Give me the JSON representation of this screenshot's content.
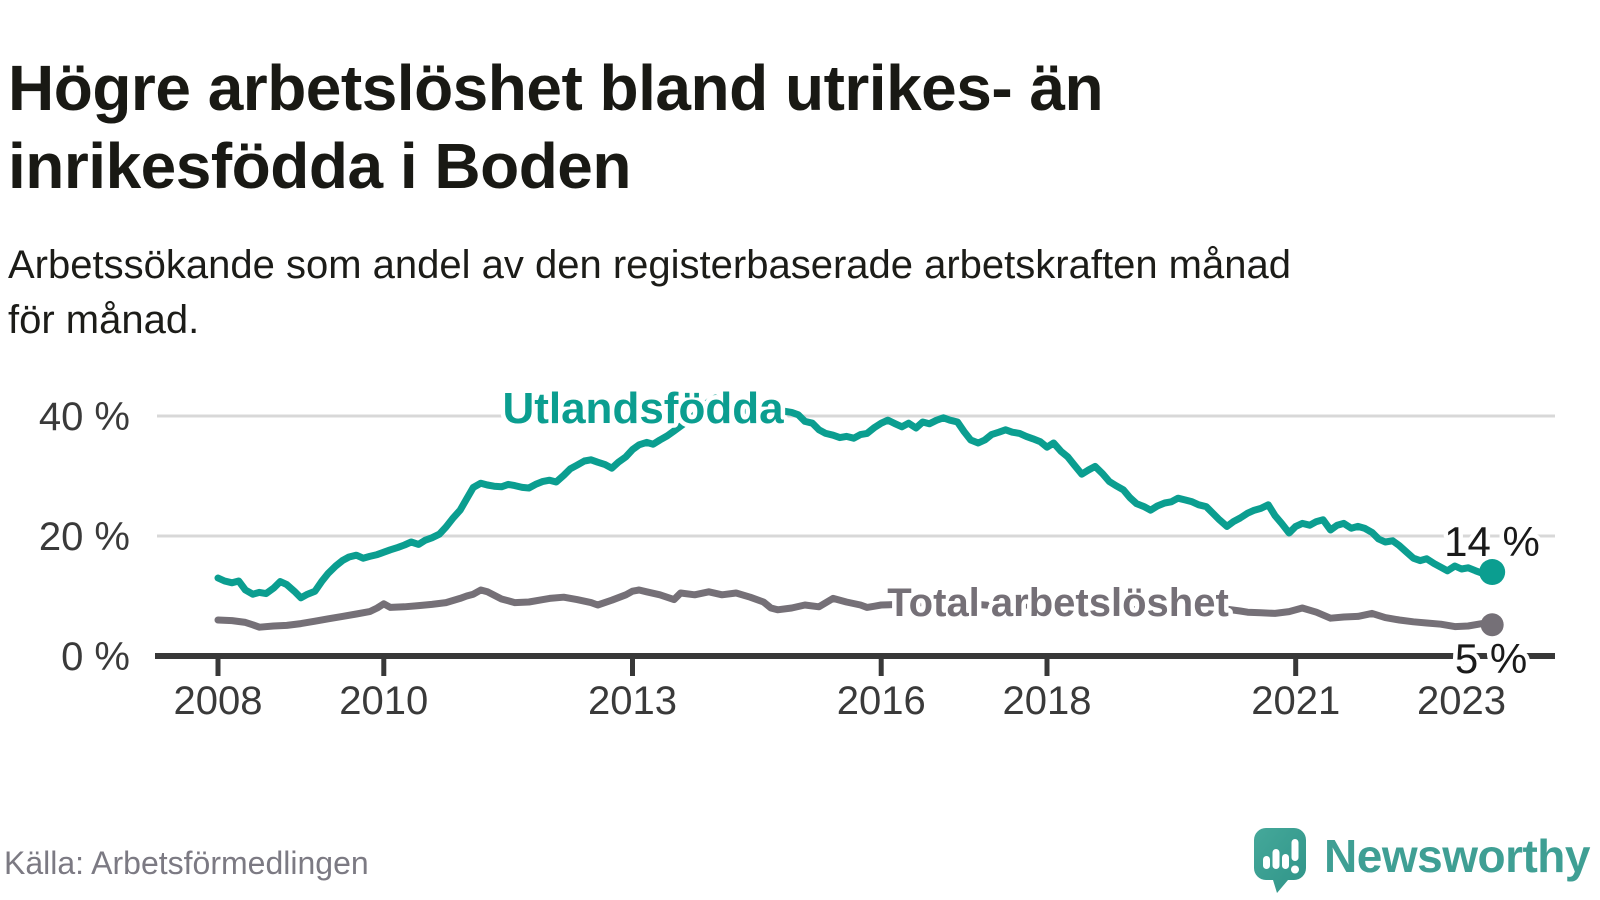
{
  "header": {
    "title_lines": [
      "Högre arbetslöshet bland utrikes- än",
      "inrikesfödda i Boden"
    ],
    "subtitle_lines": [
      "Arbetssökande som andel av den registerbaserade arbetskraften månad",
      "för månad."
    ]
  },
  "chart_data": {
    "type": "line",
    "unit": "%",
    "grid": "horizontal",
    "xlim": [
      2007.3,
      2024.1
    ],
    "ylim": [
      0,
      47
    ],
    "x_ticks": [
      {
        "year": 2008,
        "label": "2008"
      },
      {
        "year": 2010,
        "label": "2010"
      },
      {
        "year": 2013,
        "label": "2013"
      },
      {
        "year": 2016,
        "label": "2016"
      },
      {
        "year": 2018,
        "label": "2018"
      },
      {
        "year": 2021,
        "label": "2021"
      },
      {
        "year": 2023,
        "label": "2023"
      }
    ],
    "y_ticks": [
      {
        "value": 0,
        "label": "0 %"
      },
      {
        "value": 20,
        "label": "20 %"
      },
      {
        "value": 40,
        "label": "40 %"
      }
    ],
    "series": [
      {
        "name": "Utlandsfödda",
        "color": "#0b9e90",
        "end_label": "14 %",
        "last_value": 14,
        "points": [
          [
            2008.0,
            13.0
          ],
          [
            2008.08,
            12.5
          ],
          [
            2008.17,
            12.2
          ],
          [
            2008.25,
            12.5
          ],
          [
            2008.33,
            11.0
          ],
          [
            2008.42,
            10.3
          ],
          [
            2008.5,
            10.6
          ],
          [
            2008.58,
            10.4
          ],
          [
            2008.67,
            11.3
          ],
          [
            2008.75,
            12.4
          ],
          [
            2008.83,
            11.9
          ],
          [
            2008.92,
            10.8
          ],
          [
            2009.0,
            9.7
          ],
          [
            2009.08,
            10.3
          ],
          [
            2009.17,
            10.8
          ],
          [
            2009.25,
            12.4
          ],
          [
            2009.33,
            13.8
          ],
          [
            2009.42,
            15.0
          ],
          [
            2009.5,
            15.9
          ],
          [
            2009.58,
            16.5
          ],
          [
            2009.67,
            16.8
          ],
          [
            2009.75,
            16.3
          ],
          [
            2009.83,
            16.6
          ],
          [
            2009.92,
            16.9
          ],
          [
            2010.0,
            17.3
          ],
          [
            2010.08,
            17.7
          ],
          [
            2010.17,
            18.1
          ],
          [
            2010.25,
            18.5
          ],
          [
            2010.33,
            19.0
          ],
          [
            2010.42,
            18.6
          ],
          [
            2010.5,
            19.3
          ],
          [
            2010.58,
            19.7
          ],
          [
            2010.67,
            20.3
          ],
          [
            2010.75,
            21.5
          ],
          [
            2010.83,
            22.9
          ],
          [
            2010.92,
            24.3
          ],
          [
            2011.0,
            26.2
          ],
          [
            2011.08,
            28.1
          ],
          [
            2011.17,
            28.8
          ],
          [
            2011.25,
            28.5
          ],
          [
            2011.33,
            28.3
          ],
          [
            2011.42,
            28.2
          ],
          [
            2011.5,
            28.6
          ],
          [
            2011.58,
            28.4
          ],
          [
            2011.67,
            28.1
          ],
          [
            2011.75,
            28.0
          ],
          [
            2011.83,
            28.6
          ],
          [
            2011.92,
            29.1
          ],
          [
            2012.0,
            29.3
          ],
          [
            2012.08,
            29.0
          ],
          [
            2012.17,
            30.1
          ],
          [
            2012.25,
            31.2
          ],
          [
            2012.33,
            31.8
          ],
          [
            2012.42,
            32.5
          ],
          [
            2012.5,
            32.7
          ],
          [
            2012.58,
            32.3
          ],
          [
            2012.67,
            31.9
          ],
          [
            2012.75,
            31.3
          ],
          [
            2012.83,
            32.3
          ],
          [
            2012.92,
            33.2
          ],
          [
            2013.0,
            34.4
          ],
          [
            2013.08,
            35.2
          ],
          [
            2013.17,
            35.6
          ],
          [
            2013.25,
            35.3
          ],
          [
            2013.33,
            36.0
          ],
          [
            2013.42,
            36.7
          ],
          [
            2013.5,
            37.5
          ],
          [
            2013.58,
            38.3
          ],
          [
            2013.67,
            39.2
          ],
          [
            2013.75,
            40.2
          ],
          [
            2013.83,
            41.3
          ],
          [
            2013.92,
            42.4
          ],
          [
            2014.0,
            43.0
          ],
          [
            2014.08,
            42.1
          ],
          [
            2014.17,
            41.3
          ],
          [
            2014.25,
            41.7
          ],
          [
            2014.33,
            41.1
          ],
          [
            2014.42,
            40.6
          ],
          [
            2014.5,
            41.0
          ],
          [
            2014.58,
            40.5
          ],
          [
            2014.67,
            40.8
          ],
          [
            2014.75,
            40.3
          ],
          [
            2014.83,
            40.8
          ],
          [
            2014.92,
            40.6
          ],
          [
            2015.0,
            40.2
          ],
          [
            2015.08,
            39.1
          ],
          [
            2015.17,
            38.8
          ],
          [
            2015.25,
            37.7
          ],
          [
            2015.33,
            37.1
          ],
          [
            2015.42,
            36.8
          ],
          [
            2015.5,
            36.4
          ],
          [
            2015.58,
            36.6
          ],
          [
            2015.67,
            36.3
          ],
          [
            2015.75,
            36.9
          ],
          [
            2015.83,
            37.1
          ],
          [
            2015.92,
            38.1
          ],
          [
            2016.0,
            38.8
          ],
          [
            2016.08,
            39.3
          ],
          [
            2016.17,
            38.7
          ],
          [
            2016.25,
            38.2
          ],
          [
            2016.33,
            38.8
          ],
          [
            2016.42,
            38.0
          ],
          [
            2016.5,
            39.0
          ],
          [
            2016.58,
            38.7
          ],
          [
            2016.67,
            39.3
          ],
          [
            2016.75,
            39.7
          ],
          [
            2016.83,
            39.3
          ],
          [
            2016.92,
            39.0
          ],
          [
            2017.0,
            37.4
          ],
          [
            2017.08,
            36.0
          ],
          [
            2017.17,
            35.5
          ],
          [
            2017.25,
            36.0
          ],
          [
            2017.33,
            36.9
          ],
          [
            2017.42,
            37.3
          ],
          [
            2017.5,
            37.7
          ],
          [
            2017.58,
            37.3
          ],
          [
            2017.67,
            37.1
          ],
          [
            2017.75,
            36.6
          ],
          [
            2017.83,
            36.2
          ],
          [
            2017.92,
            35.7
          ],
          [
            2018.0,
            34.8
          ],
          [
            2018.08,
            35.5
          ],
          [
            2018.17,
            34.1
          ],
          [
            2018.25,
            33.2
          ],
          [
            2018.33,
            31.8
          ],
          [
            2018.42,
            30.3
          ],
          [
            2018.5,
            31.0
          ],
          [
            2018.58,
            31.6
          ],
          [
            2018.67,
            30.4
          ],
          [
            2018.75,
            29.1
          ],
          [
            2018.83,
            28.4
          ],
          [
            2018.92,
            27.7
          ],
          [
            2019.0,
            26.4
          ],
          [
            2019.08,
            25.4
          ],
          [
            2019.17,
            24.9
          ],
          [
            2019.25,
            24.3
          ],
          [
            2019.33,
            25.0
          ],
          [
            2019.42,
            25.5
          ],
          [
            2019.5,
            25.7
          ],
          [
            2019.58,
            26.3
          ],
          [
            2019.67,
            26.0
          ],
          [
            2019.75,
            25.7
          ],
          [
            2019.83,
            25.2
          ],
          [
            2019.92,
            24.9
          ],
          [
            2020.0,
            23.8
          ],
          [
            2020.08,
            22.7
          ],
          [
            2020.17,
            21.6
          ],
          [
            2020.25,
            22.4
          ],
          [
            2020.33,
            23.0
          ],
          [
            2020.42,
            23.8
          ],
          [
            2020.5,
            24.3
          ],
          [
            2020.58,
            24.6
          ],
          [
            2020.67,
            25.2
          ],
          [
            2020.75,
            23.4
          ],
          [
            2020.83,
            22.1
          ],
          [
            2020.92,
            20.5
          ],
          [
            2021.0,
            21.6
          ],
          [
            2021.08,
            22.1
          ],
          [
            2021.17,
            21.8
          ],
          [
            2021.25,
            22.4
          ],
          [
            2021.33,
            22.7
          ],
          [
            2021.42,
            21.0
          ],
          [
            2021.5,
            21.8
          ],
          [
            2021.58,
            22.1
          ],
          [
            2021.67,
            21.3
          ],
          [
            2021.75,
            21.6
          ],
          [
            2021.83,
            21.3
          ],
          [
            2021.92,
            20.6
          ],
          [
            2022.0,
            19.5
          ],
          [
            2022.08,
            19.0
          ],
          [
            2022.17,
            19.2
          ],
          [
            2022.25,
            18.4
          ],
          [
            2022.33,
            17.4
          ],
          [
            2022.42,
            16.3
          ],
          [
            2022.5,
            15.9
          ],
          [
            2022.58,
            16.2
          ],
          [
            2022.67,
            15.4
          ],
          [
            2022.75,
            14.8
          ],
          [
            2022.83,
            14.2
          ],
          [
            2022.92,
            15.0
          ],
          [
            2023.0,
            14.5
          ],
          [
            2023.08,
            14.7
          ],
          [
            2023.17,
            14.2
          ],
          [
            2023.25,
            13.8
          ],
          [
            2023.37,
            14.0
          ]
        ]
      },
      {
        "name": "Total arbetslöshet",
        "color": "#757077",
        "end_label": "5 %",
        "last_value": 5,
        "points": [
          [
            2008.0,
            6.0
          ],
          [
            2008.17,
            5.9
          ],
          [
            2008.33,
            5.6
          ],
          [
            2008.42,
            5.2
          ],
          [
            2008.5,
            4.8
          ],
          [
            2008.67,
            5.0
          ],
          [
            2008.83,
            5.1
          ],
          [
            2009.0,
            5.4
          ],
          [
            2009.17,
            5.8
          ],
          [
            2009.33,
            6.2
          ],
          [
            2009.5,
            6.6
          ],
          [
            2009.67,
            7.0
          ],
          [
            2009.83,
            7.4
          ],
          [
            2009.92,
            8.0
          ],
          [
            2010.0,
            8.7
          ],
          [
            2010.08,
            8.1
          ],
          [
            2010.25,
            8.2
          ],
          [
            2010.42,
            8.4
          ],
          [
            2010.58,
            8.6
          ],
          [
            2010.75,
            8.9
          ],
          [
            2010.92,
            9.6
          ],
          [
            2011.0,
            10.0
          ],
          [
            2011.08,
            10.3
          ],
          [
            2011.17,
            11.0
          ],
          [
            2011.25,
            10.7
          ],
          [
            2011.42,
            9.5
          ],
          [
            2011.5,
            9.2
          ],
          [
            2011.58,
            8.9
          ],
          [
            2011.75,
            9.0
          ],
          [
            2011.92,
            9.4
          ],
          [
            2012.0,
            9.6
          ],
          [
            2012.17,
            9.8
          ],
          [
            2012.33,
            9.4
          ],
          [
            2012.5,
            8.9
          ],
          [
            2012.58,
            8.5
          ],
          [
            2012.75,
            9.3
          ],
          [
            2012.92,
            10.2
          ],
          [
            2013.0,
            10.8
          ],
          [
            2013.08,
            11.0
          ],
          [
            2013.17,
            10.7
          ],
          [
            2013.33,
            10.2
          ],
          [
            2013.5,
            9.4
          ],
          [
            2013.58,
            10.5
          ],
          [
            2013.75,
            10.2
          ],
          [
            2013.92,
            10.7
          ],
          [
            2014.08,
            10.2
          ],
          [
            2014.25,
            10.5
          ],
          [
            2014.42,
            9.8
          ],
          [
            2014.58,
            9.0
          ],
          [
            2014.67,
            8.0
          ],
          [
            2014.75,
            7.7
          ],
          [
            2014.92,
            8.0
          ],
          [
            2015.08,
            8.5
          ],
          [
            2015.25,
            8.2
          ],
          [
            2015.42,
            9.6
          ],
          [
            2015.58,
            9.0
          ],
          [
            2015.75,
            8.5
          ],
          [
            2015.83,
            8.1
          ],
          [
            2015.92,
            8.3
          ],
          [
            2016.0,
            8.5
          ],
          [
            2016.25,
            8.6
          ],
          [
            2016.5,
            8.9
          ],
          [
            2016.75,
            8.6
          ],
          [
            2017.0,
            8.8
          ],
          [
            2017.25,
            8.5
          ],
          [
            2017.5,
            8.2
          ],
          [
            2017.75,
            8.5
          ],
          [
            2018.0,
            8.3
          ],
          [
            2018.25,
            8.0
          ],
          [
            2018.5,
            8.2
          ],
          [
            2018.75,
            7.9
          ],
          [
            2019.0,
            7.7
          ],
          [
            2019.25,
            7.9
          ],
          [
            2019.5,
            7.6
          ],
          [
            2019.75,
            7.4
          ],
          [
            2020.0,
            7.6
          ],
          [
            2020.17,
            7.8
          ],
          [
            2020.33,
            7.5
          ],
          [
            2020.42,
            7.3
          ],
          [
            2020.58,
            7.2
          ],
          [
            2020.75,
            7.1
          ],
          [
            2020.92,
            7.4
          ],
          [
            2021.08,
            8.0
          ],
          [
            2021.25,
            7.3
          ],
          [
            2021.42,
            6.3
          ],
          [
            2021.58,
            6.5
          ],
          [
            2021.75,
            6.6
          ],
          [
            2021.92,
            7.1
          ],
          [
            2022.08,
            6.4
          ],
          [
            2022.25,
            6.0
          ],
          [
            2022.42,
            5.7
          ],
          [
            2022.58,
            5.5
          ],
          [
            2022.75,
            5.3
          ],
          [
            2022.92,
            4.9
          ],
          [
            2023.08,
            5.0
          ],
          [
            2023.25,
            5.4
          ],
          [
            2023.37,
            5.2
          ]
        ]
      }
    ]
  },
  "footer": {
    "source": "Källa: Arbetsförmedlingen",
    "brand": "Newsworthy"
  },
  "colors": {
    "accent_teal": "#0b9e90",
    "neutral_gray": "#757077",
    "grid": "#d8d8d8",
    "axis": "#383838",
    "text_dark": "#191914",
    "logo_teal": "#3ca293"
  }
}
